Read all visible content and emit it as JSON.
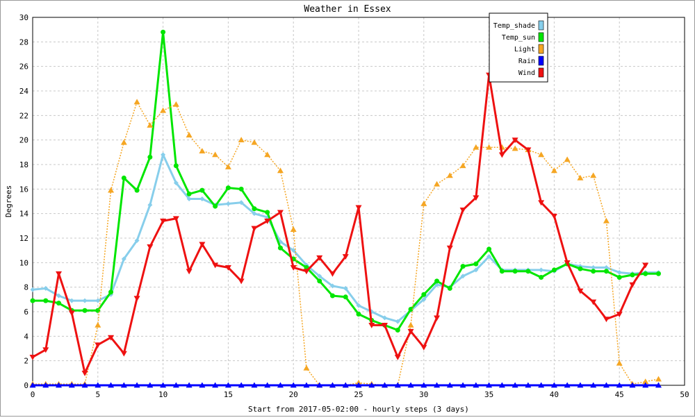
{
  "chart_data": {
    "type": "line",
    "title": "Weather in Essex",
    "xlabel": "Start from 2017-05-02:00 - hourly steps (3 days)",
    "ylabel": "Degrees",
    "xlim": [
      0,
      50
    ],
    "ylim": [
      0,
      30
    ],
    "xticks": [
      "0",
      "5",
      "10",
      "15",
      "20",
      "25",
      "30",
      "35",
      "40",
      "45",
      "50"
    ],
    "yticks": [
      "0",
      "2",
      "4",
      "6",
      "8",
      "10",
      "12",
      "14",
      "16",
      "18",
      "20",
      "22",
      "24",
      "26",
      "28",
      "30"
    ],
    "grid": true,
    "legend_position": "top-right",
    "x": [
      0,
      1,
      2,
      3,
      4,
      5,
      6,
      7,
      8,
      9,
      10,
      11,
      12,
      13,
      14,
      15,
      16,
      17,
      18,
      19,
      20,
      21,
      22,
      23,
      24,
      25,
      26,
      27,
      28,
      29,
      30,
      31,
      32,
      33,
      34,
      35,
      36,
      37,
      38,
      39,
      40,
      41,
      42,
      43,
      44,
      45,
      46,
      47,
      48
    ],
    "series": [
      {
        "name": "Temp_shade",
        "color": "#87ceeb",
        "style": "solid",
        "marker": "diamond",
        "values": [
          7.8,
          7.9,
          7.3,
          6.9,
          6.9,
          6.9,
          7.4,
          10.3,
          11.8,
          14.7,
          18.8,
          16.5,
          15.2,
          15.2,
          14.7,
          14.8,
          14.9,
          14.0,
          13.7,
          11.7,
          11.0,
          9.8,
          8.9,
          8.1,
          7.9,
          6.5,
          6.0,
          5.5,
          5.2,
          6.1,
          7.0,
          8.2,
          8.0,
          8.9,
          9.4,
          10.5,
          9.4,
          9.4,
          9.4,
          9.4,
          9.3,
          9.9,
          9.7,
          9.6,
          9.6,
          9.2,
          9.1,
          9.2,
          9.2
        ]
      },
      {
        "name": "Temp_sun",
        "color": "#00e600",
        "style": "solid",
        "marker": "circle",
        "values": [
          6.9,
          6.9,
          6.7,
          6.1,
          6.1,
          6.1,
          7.6,
          16.9,
          15.9,
          18.6,
          28.8,
          17.9,
          15.6,
          15.9,
          14.6,
          16.1,
          16.0,
          14.4,
          14.1,
          11.2,
          10.3,
          9.6,
          8.5,
          7.3,
          7.2,
          5.8,
          5.3,
          4.9,
          4.5,
          6.2,
          7.4,
          8.5,
          7.9,
          9.7,
          9.9,
          11.1,
          9.3,
          9.3,
          9.3,
          8.8,
          9.4,
          9.9,
          9.5,
          9.3,
          9.3,
          8.8,
          9.0,
          9.1,
          9.1
        ]
      },
      {
        "name": "Light",
        "color": "#f5a623",
        "style": "dotted",
        "marker": "triangle-up",
        "values": [
          0.1,
          0.1,
          0.1,
          0.1,
          0.1,
          4.9,
          15.9,
          19.8,
          23.1,
          21.2,
          22.4,
          22.9,
          20.4,
          19.1,
          18.8,
          17.8,
          20.0,
          19.8,
          18.8,
          17.5,
          12.7,
          1.4,
          0.0,
          0.0,
          0.0,
          0.2,
          0.1,
          0.0,
          0.0,
          4.9,
          14.8,
          16.4,
          17.1,
          17.9,
          19.4,
          19.4,
          19.4,
          19.3,
          19.2,
          18.8,
          17.5,
          18.4,
          16.9,
          17.1,
          13.4,
          1.8,
          0.1,
          0.3,
          0.5
        ]
      },
      {
        "name": "Rain",
        "color": "#0000ff",
        "style": "solid",
        "marker": "triangle-up",
        "values": [
          0,
          0,
          0,
          0,
          0,
          0,
          0,
          0,
          0,
          0,
          0,
          0,
          0,
          0,
          0,
          0,
          0,
          0,
          0,
          0,
          0,
          0,
          0,
          0,
          0,
          0,
          0,
          0,
          0,
          0,
          0,
          0,
          0,
          0,
          0,
          0,
          0,
          0,
          0,
          0,
          0,
          0,
          0,
          0,
          0,
          0,
          0,
          0,
          0
        ]
      },
      {
        "name": "Wind",
        "color": "#ee1111",
        "style": "solid",
        "marker": "triangle-down",
        "values": [
          2.3,
          2.9,
          9.1,
          5.9,
          1.0,
          3.3,
          3.9,
          2.6,
          7.1,
          11.3,
          13.4,
          13.6,
          9.3,
          11.5,
          9.8,
          9.6,
          8.5,
          12.8,
          13.4,
          14.1,
          9.6,
          9.3,
          10.4,
          9.1,
          10.5,
          14.5,
          4.9,
          4.9,
          2.3,
          4.4,
          3.1,
          5.5,
          11.2,
          14.3,
          15.3,
          25.3,
          18.8,
          20.0,
          19.2,
          14.9,
          13.8,
          10.0,
          7.7,
          6.8,
          5.4,
          5.8,
          8.2,
          9.8,
          null
        ]
      }
    ]
  }
}
